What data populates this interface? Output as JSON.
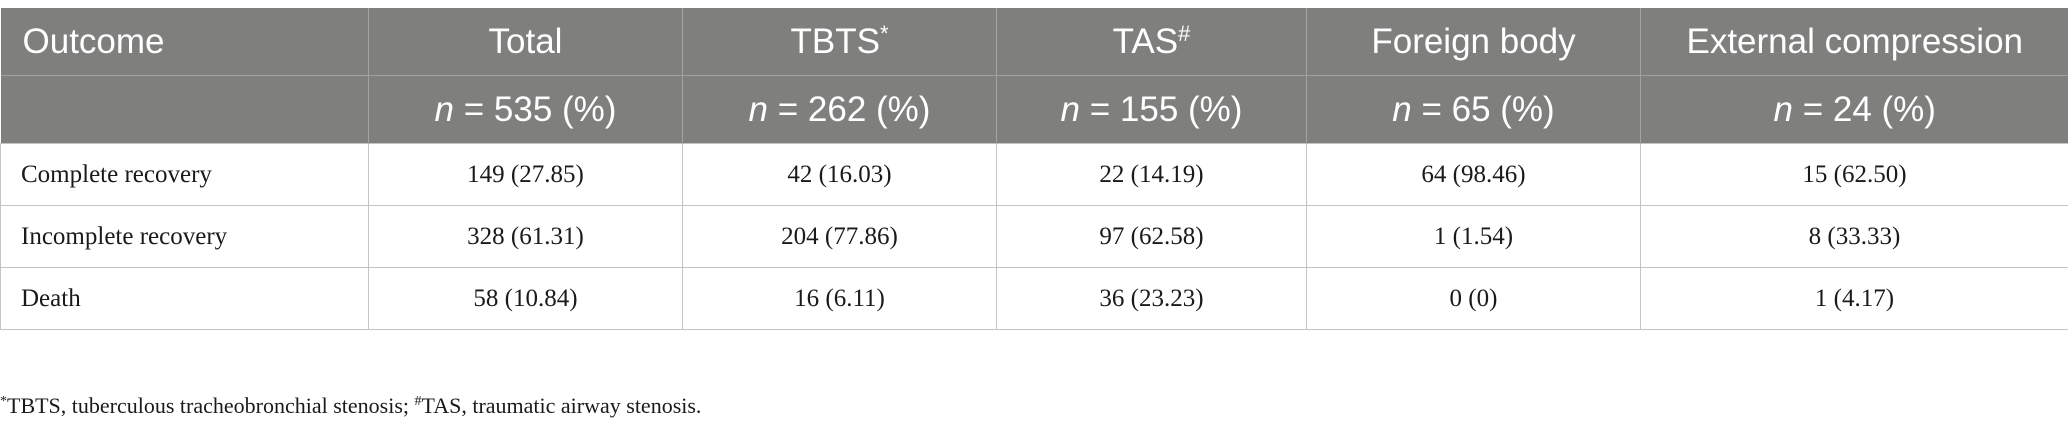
{
  "table": {
    "headers": [
      "Outcome",
      "Total",
      "TBTS",
      "TAS",
      "Foreign body",
      "External compression"
    ],
    "header_marks": [
      "",
      "",
      "*",
      "#",
      "",
      ""
    ],
    "n_symbol": "n",
    "subheaders": [
      "",
      " = 535 (%)",
      " = 262 (%)",
      " = 155 (%)",
      " = 65 (%)",
      " = 24 (%)"
    ],
    "rows": [
      [
        "Complete recovery",
        "149 (27.85)",
        "42 (16.03)",
        "22 (14.19)",
        "64 (98.46)",
        "15 (62.50)"
      ],
      [
        "Incomplete recovery",
        "328 (61.31)",
        "204 (77.86)",
        "97 (62.58)",
        "1 (1.54)",
        "8 (33.33)"
      ],
      [
        "Death",
        "58 (10.84)",
        "16 (6.11)",
        "36 (23.23)",
        "0 (0)",
        "1 (4.17)"
      ]
    ]
  },
  "footnote": {
    "mark1": "*",
    "text1": "TBTS, tuberculous tracheobronchial stenosis; ",
    "mark2": "#",
    "text2": "TAS, traumatic airway stenosis."
  },
  "colors": {
    "header_bg": "#7f7f7d",
    "header_text": "#ffffff",
    "grid": "#c4c4c4"
  }
}
